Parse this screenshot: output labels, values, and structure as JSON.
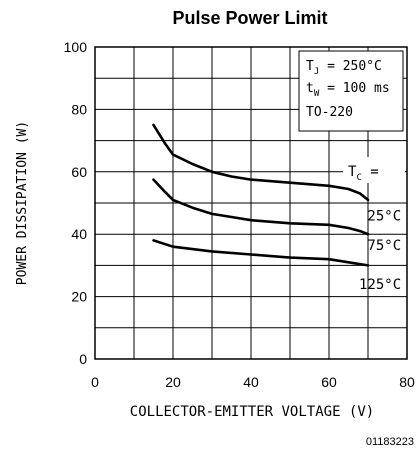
{
  "chart_data": {
    "type": "line",
    "title": "Pulse Power Limit",
    "xlabel": "COLLECTOR-EMITTER VOLTAGE (V)",
    "ylabel": "POWER DISSIPATION (W)",
    "xlim": [
      0,
      80
    ],
    "ylim": [
      0,
      100
    ],
    "xticks": [
      "0",
      "20",
      "40",
      "60",
      "80"
    ],
    "yticks": [
      "0",
      "20",
      "40",
      "60",
      "80",
      "100"
    ],
    "grid": true,
    "conditions": {
      "tj_sym": "T",
      "tj_sub": "J",
      "tj_val": " = 250°C",
      "tw_sym": "t",
      "tw_sub": "W",
      "tw_val": " = 100 ms",
      "package": "TO-220",
      "tc_sym": "T",
      "tc_sub": "C",
      "tc_val": " = "
    },
    "series": [
      {
        "name": "25°C",
        "x": [
          15,
          18,
          20,
          25,
          30,
          35,
          40,
          50,
          60,
          65,
          68,
          70
        ],
        "y": [
          75,
          69,
          65.5,
          62.5,
          60,
          58.5,
          57.5,
          56.5,
          55.5,
          54.5,
          53,
          51
        ]
      },
      {
        "name": "75°C",
        "x": [
          15,
          18,
          20,
          25,
          30,
          35,
          40,
          50,
          60,
          65,
          68,
          70
        ],
        "y": [
          57.5,
          53.5,
          51,
          48.5,
          46.5,
          45.5,
          44.5,
          43.5,
          43,
          42,
          41,
          40
        ]
      },
      {
        "name": "125°C",
        "x": [
          15,
          20,
          30,
          40,
          50,
          60,
          65,
          70
        ],
        "y": [
          38,
          36,
          34.5,
          33.5,
          32.5,
          32,
          31,
          30
        ]
      }
    ]
  },
  "figure_id": "01183223"
}
